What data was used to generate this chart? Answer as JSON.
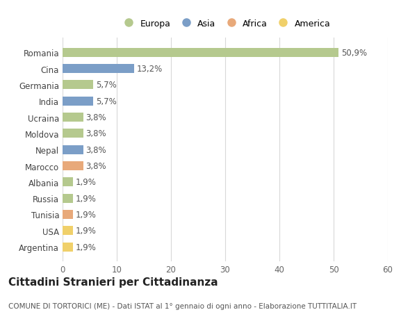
{
  "countries": [
    "Romania",
    "Cina",
    "Germania",
    "India",
    "Ucraina",
    "Moldova",
    "Nepal",
    "Marocco",
    "Albania",
    "Russia",
    "Tunisia",
    "USA",
    "Argentina"
  ],
  "values": [
    50.9,
    13.2,
    5.7,
    5.7,
    3.8,
    3.8,
    3.8,
    3.8,
    1.9,
    1.9,
    1.9,
    1.9,
    1.9
  ],
  "labels": [
    "50,9%",
    "13,2%",
    "5,7%",
    "5,7%",
    "3,8%",
    "3,8%",
    "3,8%",
    "3,8%",
    "1,9%",
    "1,9%",
    "1,9%",
    "1,9%",
    "1,9%"
  ],
  "continents": [
    "Europa",
    "Asia",
    "Europa",
    "Asia",
    "Europa",
    "Europa",
    "Asia",
    "Africa",
    "Europa",
    "Europa",
    "Africa",
    "America",
    "America"
  ],
  "continent_colors": {
    "Europa": "#b5c98e",
    "Asia": "#7b9ec7",
    "Africa": "#e8a97a",
    "America": "#f0d06a"
  },
  "legend_entries": [
    "Europa",
    "Asia",
    "Africa",
    "America"
  ],
  "xlim": [
    0,
    60
  ],
  "xticks": [
    0,
    10,
    20,
    30,
    40,
    50,
    60
  ],
  "title": "Cittadini Stranieri per Cittadinanza",
  "subtitle": "COMUNE DI TORTORICI (ME) - Dati ISTAT al 1° gennaio di ogni anno - Elaborazione TUTTITALIA.IT",
  "bg_color": "#ffffff",
  "grid_color": "#d8d8d8",
  "bar_height": 0.55,
  "label_fontsize": 8.5,
  "title_fontsize": 11,
  "subtitle_fontsize": 7.5
}
